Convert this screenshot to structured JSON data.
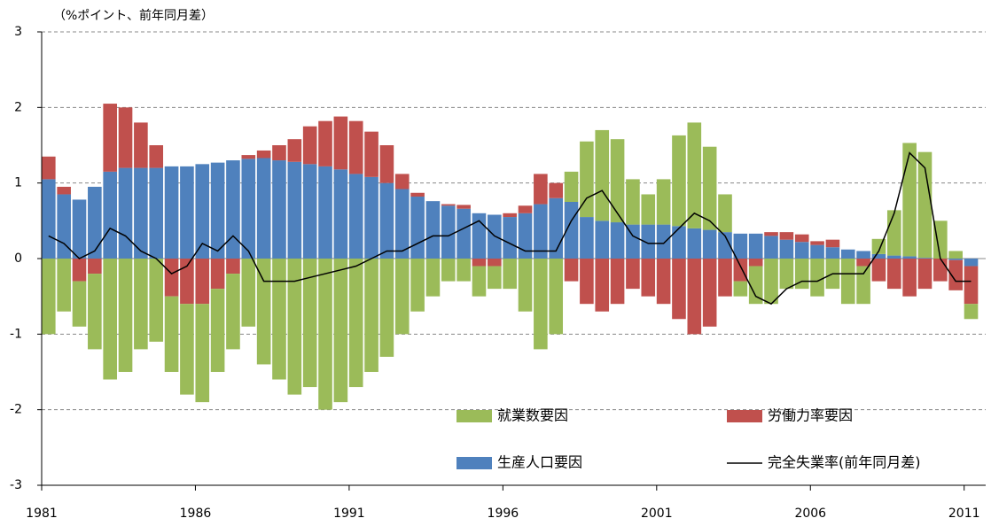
{
  "chart_data": {
    "type": "stacked-bar-line",
    "y_axis_label": "（%ポイント、前年同月差）",
    "x": [
      1981,
      1981.5,
      1982,
      1982.5,
      1983,
      1983.5,
      1984,
      1984.5,
      1985,
      1985.5,
      1986,
      1986.5,
      1987,
      1987.5,
      1988,
      1988.5,
      1989,
      1989.5,
      1990,
      1990.5,
      1991,
      1991.5,
      1992,
      1992.5,
      1993,
      1993.5,
      1994,
      1994.5,
      1995,
      1995.5,
      1996,
      1996.5,
      1997,
      1997.5,
      1998,
      1998.5,
      1999,
      1999.5,
      2000,
      2000.5,
      2001,
      2001.5,
      2002,
      2002.5,
      2003,
      2003.5,
      2004,
      2004.5,
      2005,
      2005.5,
      2006,
      2006.5,
      2007,
      2007.5,
      2008,
      2008.5,
      2009,
      2009.5,
      2010,
      2010.5,
      2011
    ],
    "xlim": [
      1981,
      2011.7
    ],
    "xticks": [
      1981,
      1986,
      1991,
      1996,
      2001,
      2006,
      2011
    ],
    "ylim": [
      -3,
      3
    ],
    "yticks": [
      -3,
      -2,
      -1,
      0,
      1,
      2,
      3
    ],
    "grid": true,
    "legend": "lower right",
    "series": [
      {
        "name": "就業数要因",
        "color": "#9bbb59",
        "values": [
          -1.0,
          -0.7,
          -0.6,
          -1.0,
          -1.6,
          -1.5,
          -1.2,
          -1.1,
          -1.0,
          -1.2,
          -1.3,
          -1.1,
          -1.0,
          -0.9,
          -1.4,
          -1.6,
          -1.8,
          -1.7,
          -2.0,
          -1.9,
          -1.7,
          -1.5,
          -1.3,
          -1.0,
          -0.7,
          -0.5,
          -0.3,
          -0.3,
          -0.4,
          -0.3,
          -0.4,
          -0.7,
          -1.2,
          -1.0,
          0.4,
          1.0,
          1.2,
          1.1,
          0.6,
          0.4,
          0.6,
          1.2,
          1.4,
          1.1,
          0.5,
          -0.2,
          -0.5,
          -0.6,
          -0.4,
          -0.4,
          -0.5,
          -0.4,
          -0.6,
          -0.5,
          0.2,
          0.6,
          1.5,
          1.4,
          0.5,
          0.1,
          -0.2
        ]
      },
      {
        "name": "労働力率要因",
        "color": "#c0504d",
        "values": [
          0.3,
          0.1,
          -0.3,
          -0.2,
          0.9,
          0.8,
          0.6,
          0.3,
          -0.5,
          -0.6,
          -0.6,
          -0.4,
          -0.2,
          0.05,
          0.1,
          0.2,
          0.3,
          0.5,
          0.6,
          0.7,
          0.7,
          0.6,
          0.5,
          0.2,
          0.05,
          0,
          0.02,
          0.05,
          -0.1,
          -0.1,
          0.05,
          0.1,
          0.4,
          0.2,
          -0.3,
          -0.6,
          -0.7,
          -0.6,
          -0.4,
          -0.5,
          -0.6,
          -0.8,
          -1.0,
          -0.9,
          -0.5,
          -0.3,
          -0.1,
          0.05,
          0.1,
          0.1,
          0.05,
          0.1,
          0,
          -0.1,
          -0.3,
          -0.4,
          -0.5,
          -0.4,
          -0.3,
          -0.4,
          -0.5
        ]
      },
      {
        "name": "生産人口要因",
        "color": "#4f81bd",
        "values": [
          1.05,
          0.85,
          0.78,
          0.95,
          1.15,
          1.2,
          1.2,
          1.2,
          1.22,
          1.22,
          1.25,
          1.27,
          1.3,
          1.32,
          1.33,
          1.3,
          1.28,
          1.25,
          1.22,
          1.18,
          1.12,
          1.08,
          1.0,
          0.92,
          0.82,
          0.76,
          0.7,
          0.66,
          0.6,
          0.58,
          0.55,
          0.6,
          0.72,
          0.8,
          0.75,
          0.55,
          0.5,
          0.48,
          0.45,
          0.45,
          0.45,
          0.43,
          0.4,
          0.38,
          0.35,
          0.33,
          0.33,
          0.3,
          0.25,
          0.22,
          0.18,
          0.15,
          0.12,
          0.1,
          0.06,
          0.04,
          0.03,
          0.01,
          0,
          -0.02,
          -0.1
        ]
      },
      {
        "name": "完全失業率(前年同月差)",
        "color": "#000000",
        "kind": "line",
        "values": [
          0.3,
          0.2,
          0.0,
          0.1,
          0.4,
          0.3,
          0.1,
          0.0,
          -0.2,
          -0.1,
          0.2,
          0.1,
          0.3,
          0.1,
          -0.3,
          -0.3,
          -0.3,
          -0.25,
          -0.2,
          -0.15,
          -0.1,
          0.0,
          0.1,
          0.1,
          0.2,
          0.3,
          0.3,
          0.4,
          0.5,
          0.3,
          0.2,
          0.1,
          0.1,
          0.1,
          0.5,
          0.8,
          0.9,
          0.6,
          0.3,
          0.2,
          0.2,
          0.4,
          0.6,
          0.5,
          0.3,
          -0.1,
          -0.5,
          -0.6,
          -0.4,
          -0.3,
          -0.3,
          -0.2,
          -0.2,
          -0.2,
          0.1,
          0.6,
          1.4,
          1.2,
          0.0,
          -0.3,
          -0.3
        ]
      }
    ]
  }
}
